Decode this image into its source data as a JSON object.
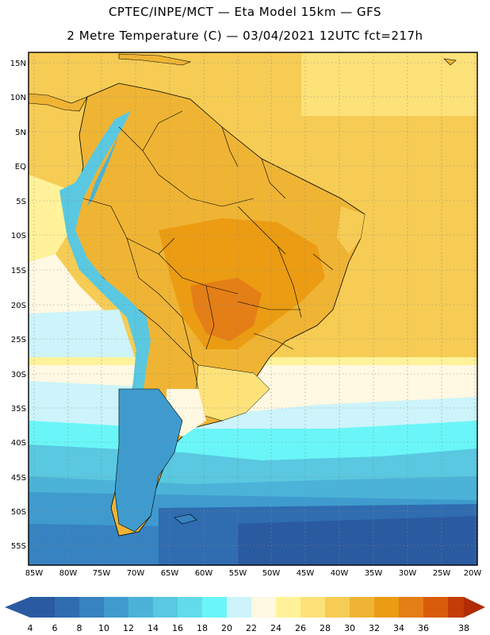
{
  "header": {
    "line1": "CPTEC/INPE/MCT —  Eta Model 15km — GFS",
    "line2": "2 Metre Temperature (C) — 03/04/2021 12UTC fct=217h"
  },
  "map": {
    "lat_labels": [
      "15N",
      "10N",
      "5N",
      "EQ",
      "5S",
      "10S",
      "15S",
      "20S",
      "25S",
      "30S",
      "35S",
      "40S",
      "45S",
      "50S",
      "55S"
    ],
    "lon_labels": [
      "85W",
      "80W",
      "75W",
      "70W",
      "65W",
      "60W",
      "55W",
      "50W",
      "45W",
      "40W",
      "35W",
      "30W",
      "25W",
      "20W"
    ]
  },
  "colorbar": {
    "ticks": [
      "4",
      "6",
      "8",
      "10",
      "12",
      "14",
      "16",
      "18",
      "20",
      "22",
      "24",
      "26",
      "28",
      "30",
      "32",
      "34",
      "36",
      "38"
    ],
    "colors": [
      "#2a5aa0",
      "#2f6cb0",
      "#3782c0",
      "#3f9bce",
      "#4bb3d8",
      "#59c8e0",
      "#62dcea",
      "#6af6f8",
      "#ccf4fa",
      "#fff8e2",
      "#fff29a",
      "#fde27a",
      "#f6cc54",
      "#efb434",
      "#eb9c12",
      "#e47e16",
      "#d95c0a",
      "#c43c06",
      "#b02c04"
    ],
    "low_color": "#2a5aa0",
    "high_color": "#b02c04"
  }
}
